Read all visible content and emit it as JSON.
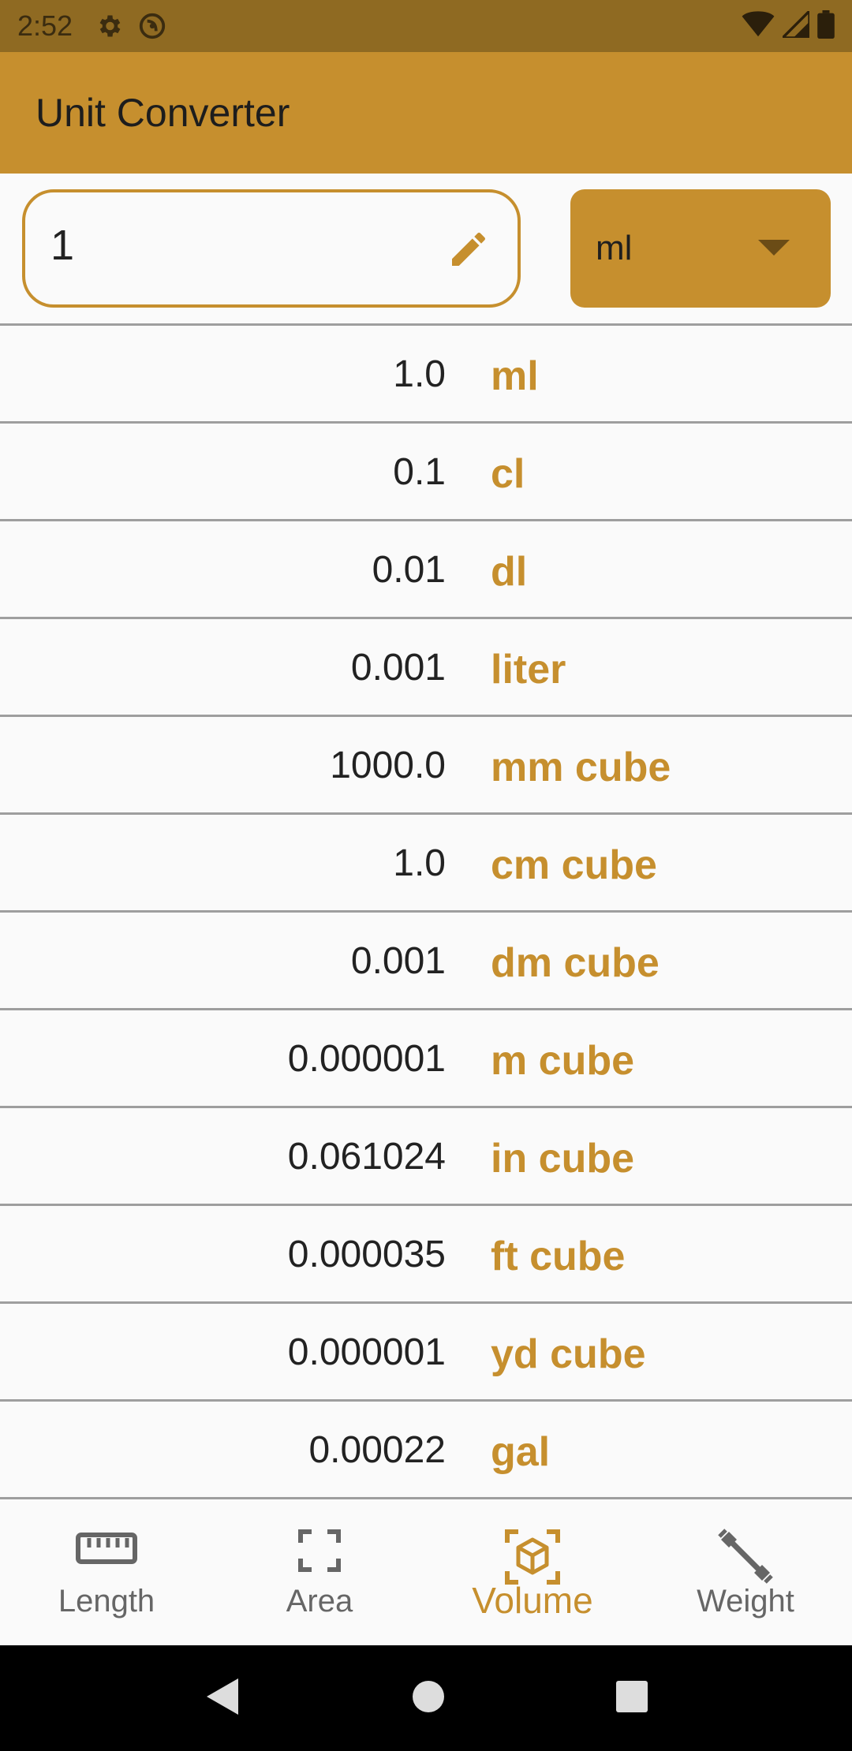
{
  "status_bar": {
    "time": "2:52",
    "icons": [
      "gear-icon",
      "do-not-disturb-icon",
      "wifi-icon",
      "signal-icon",
      "battery-icon"
    ]
  },
  "app_bar": {
    "title": "Unit Converter"
  },
  "converter": {
    "input_value": "1",
    "selected_unit": "ml"
  },
  "results": [
    {
      "value": "1.0",
      "unit": "ml"
    },
    {
      "value": "0.1",
      "unit": "cl"
    },
    {
      "value": "0.01",
      "unit": "dl"
    },
    {
      "value": "0.001",
      "unit": "liter"
    },
    {
      "value": "1000.0",
      "unit": "mm cube"
    },
    {
      "value": "1.0",
      "unit": "cm cube"
    },
    {
      "value": "0.001",
      "unit": "dm cube"
    },
    {
      "value": "0.000001",
      "unit": "m cube"
    },
    {
      "value": "0.061024",
      "unit": "in cube"
    },
    {
      "value": "0.000035",
      "unit": "ft cube"
    },
    {
      "value": "0.000001",
      "unit": "yd cube"
    },
    {
      "value": "0.00022",
      "unit": "gal"
    }
  ],
  "bottom_nav": {
    "tabs": [
      {
        "label": "Length",
        "icon": "ruler-icon",
        "active": false
      },
      {
        "label": "Area",
        "icon": "area-frame-icon",
        "active": false
      },
      {
        "label": "Volume",
        "icon": "cube-icon",
        "active": true
      },
      {
        "label": "Weight",
        "icon": "dumbbell-icon",
        "active": false
      }
    ]
  },
  "colors": {
    "accent": "#c68f2e",
    "status_bar": "#8f6a22",
    "inactive": "#666666"
  }
}
